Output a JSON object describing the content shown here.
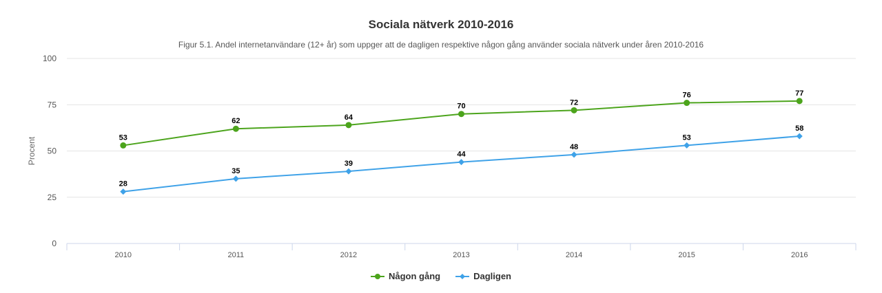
{
  "chart_data": {
    "type": "line",
    "title": "Sociala nätverk 2010-2016",
    "subtitle": "Figur 5.1. Andel internetanvändare (12+ år) som uppger att de dagligen respektive någon gång använder sociala nätverk under åren 2010-2016",
    "xlabel": "",
    "ylabel": "Procent",
    "categories": [
      "2010",
      "2011",
      "2012",
      "2013",
      "2014",
      "2015",
      "2016"
    ],
    "ylim": [
      0,
      100
    ],
    "yticks": [
      0,
      25,
      50,
      75,
      100
    ],
    "grid": true,
    "legend_position": "bottom",
    "series": [
      {
        "name": "Någon gång",
        "color": "#4ca41c",
        "marker": "circle",
        "values": [
          53,
          62,
          64,
          70,
          72,
          76,
          77
        ]
      },
      {
        "name": "Dagligen",
        "color": "#3fa2e8",
        "marker": "diamond",
        "values": [
          28,
          35,
          39,
          44,
          48,
          53,
          58
        ]
      }
    ]
  }
}
